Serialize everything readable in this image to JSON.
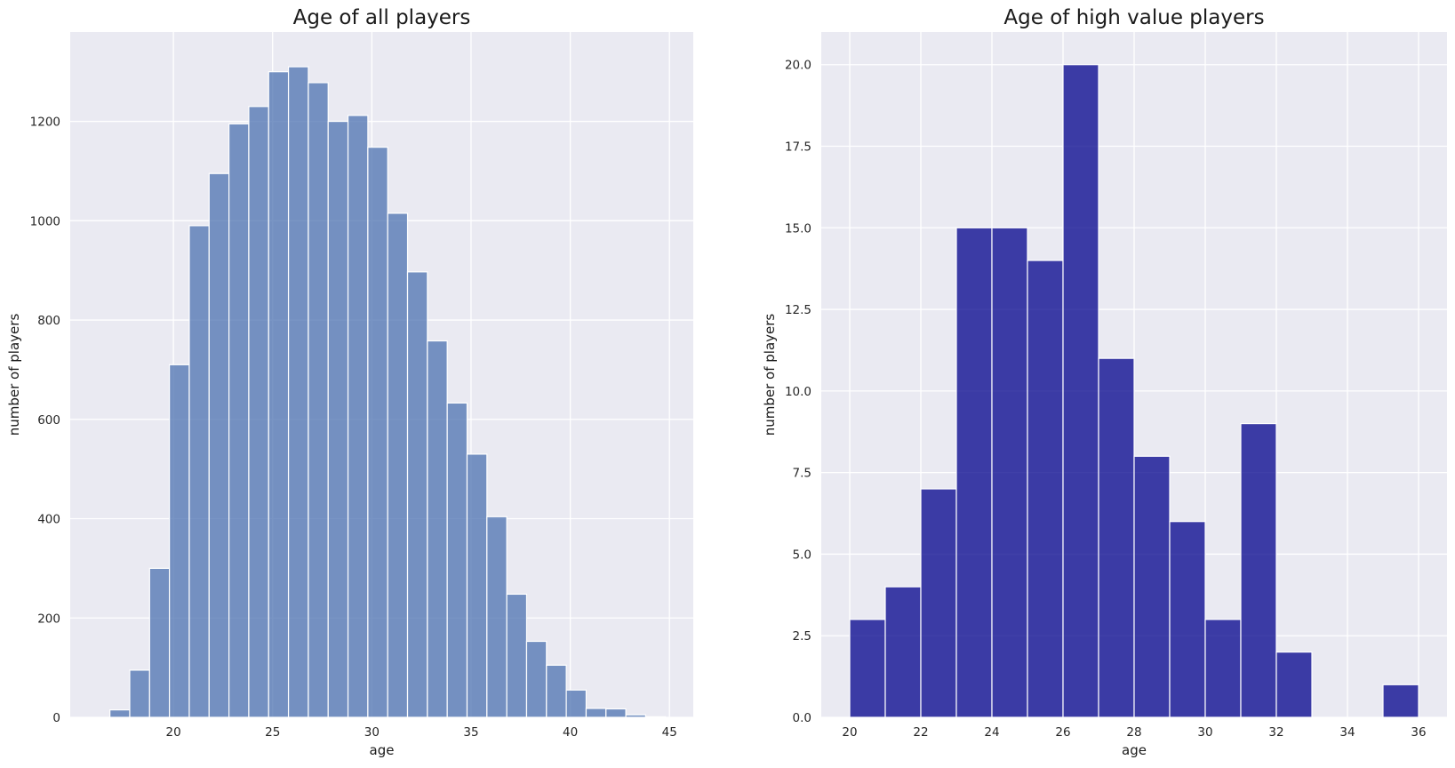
{
  "chart_data": [
    {
      "type": "bar",
      "title": "Age of all players",
      "xlabel": "age",
      "ylabel": "number of players",
      "color": "#4c72b0",
      "xlim": [
        14.8,
        46.2
      ],
      "ylim": [
        0,
        1380
      ],
      "xticks": [
        20,
        25,
        30,
        35,
        40,
        45
      ],
      "yticks": [
        0,
        200,
        400,
        600,
        800,
        1000,
        1200
      ],
      "bin_width": 1.0,
      "bin_start": 16.8,
      "values": [
        15,
        95,
        300,
        710,
        990,
        1095,
        1195,
        1230,
        1300,
        1310,
        1278,
        1200,
        1212,
        1148,
        1015,
        897,
        758,
        633,
        530,
        404,
        248,
        153,
        105,
        55,
        18,
        17,
        5,
        1
      ],
      "grid": true
    },
    {
      "type": "bar",
      "title": "Age of high value players",
      "xlabel": "age",
      "ylabel": "number of players",
      "color": "#00008b",
      "xlim": [
        19.2,
        36.8
      ],
      "ylim": [
        0,
        21
      ],
      "xticks": [
        20,
        22,
        24,
        26,
        28,
        30,
        32,
        34,
        36
      ],
      "yticks": [
        0.0,
        2.5,
        5.0,
        7.5,
        10.0,
        12.5,
        15.0,
        17.5,
        20.0
      ],
      "ytick_labels": [
        "0.0",
        "2.5",
        "5.0",
        "7.5",
        "10.0",
        "12.5",
        "15.0",
        "17.5",
        "20.0"
      ],
      "bin_width": 1.0,
      "bin_start": 20,
      "values": [
        3,
        4,
        7,
        15,
        15,
        14,
        20,
        11,
        8,
        6,
        3,
        9,
        2,
        0,
        0,
        1
      ],
      "grid": true
    }
  ]
}
